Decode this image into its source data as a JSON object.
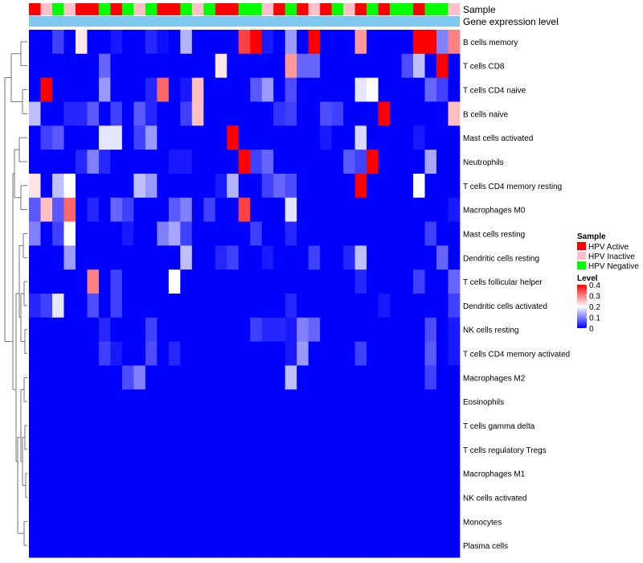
{
  "chart_data": {
    "type": "heatmap",
    "annotation_labels": {
      "sample": "Sample",
      "gene_expression": "Gene expression level"
    },
    "sample_groups": [
      "HPV Active",
      "HPV Inactive",
      "HPV Negative"
    ],
    "sample_annotation": [
      "HPV Active",
      "HPV Inactive",
      "HPV Negative",
      "HPV Inactive",
      "HPV Active",
      "HPV Active",
      "HPV Negative",
      "HPV Active",
      "HPV Negative",
      "HPV Inactive",
      "HPV Negative",
      "HPV Active",
      "HPV Active",
      "HPV Negative",
      "HPV Inactive",
      "HPV Negative",
      "HPV Active",
      "HPV Active",
      "HPV Negative",
      "HPV Negative",
      "HPV Inactive",
      "HPV Active",
      "HPV Negative",
      "HPV Active",
      "HPV Inactive",
      "HPV Active",
      "HPV Negative",
      "HPV Inactive",
      "HPV Active",
      "HPV Negative",
      "HPV Active",
      "HPV Negative",
      "HPV Negative",
      "HPV Active",
      "HPV Negative",
      "HPV Negative",
      "HPV Inactive"
    ],
    "gene_expression_color": "#7fc8f0",
    "rows": [
      "B cells memory",
      "T cells CD8",
      "T cells CD4 naive",
      "B cells naive",
      "Mast cells activated",
      "Neutrophils",
      "T cells CD4 memory resting",
      "Macrophages M0",
      "Mast cells resting",
      "Dendritic cells resting",
      "T cells follicular helper",
      "Dendritic cells activated",
      "NK cells resting",
      "T cells CD4 memory activated",
      "Macrophages M2",
      "Eosinophils",
      "T cells gamma delta",
      "T cells regulatory  Tregs",
      "Macrophages M1",
      "NK cells activated",
      "Monocytes",
      "Plasma cells"
    ],
    "values": [
      [
        0.0,
        0.0,
        0.05,
        0.0,
        0.22,
        0.0,
        0.0,
        0.02,
        0.0,
        0.0,
        0.03,
        0.01,
        0.0,
        0.14,
        0.0,
        0.0,
        0.0,
        0.0,
        0.35,
        0.4,
        0.02,
        0.0,
        0.12,
        0.0,
        0.4,
        0.0,
        0.0,
        0.0,
        0.28,
        0.0,
        0.0,
        0.0,
        0.0,
        0.4,
        0.4,
        0.1,
        0.3
      ],
      [
        0.0,
        0.0,
        0.0,
        0.0,
        0.0,
        0.0,
        0.08,
        0.0,
        0.0,
        0.0,
        0.0,
        0.0,
        0.0,
        0.0,
        0.0,
        0.0,
        0.22,
        0.0,
        0.0,
        0.0,
        0.0,
        0.0,
        0.28,
        0.08,
        0.08,
        0.0,
        0.0,
        0.0,
        0.0,
        0.0,
        0.0,
        0.0,
        0.06,
        0.15,
        0.0,
        0.4,
        0.0
      ],
      [
        0.0,
        0.4,
        0.0,
        0.0,
        0.0,
        0.0,
        0.12,
        0.0,
        0.0,
        0.0,
        0.03,
        0.32,
        0.0,
        0.02,
        0.25,
        0.0,
        0.0,
        0.0,
        0.0,
        0.07,
        0.12,
        0.0,
        0.06,
        0.0,
        0.0,
        0.0,
        0.0,
        0.0,
        0.18,
        0.2,
        0.0,
        0.0,
        0.0,
        0.0,
        0.08,
        0.05,
        0.0
      ],
      [
        0.15,
        0.0,
        0.0,
        0.03,
        0.03,
        0.07,
        0.0,
        0.05,
        0.0,
        0.07,
        0.03,
        0.0,
        0.0,
        0.05,
        0.25,
        0.0,
        0.0,
        0.0,
        0.0,
        0.0,
        0.0,
        0.04,
        0.05,
        0.0,
        0.0,
        0.06,
        0.05,
        0.0,
        0.0,
        0.0,
        0.4,
        0.0,
        0.0,
        0.0,
        0.0,
        0.0,
        0.25
      ],
      [
        0.0,
        0.05,
        0.07,
        0.0,
        0.0,
        0.0,
        0.18,
        0.18,
        0.0,
        0.05,
        0.12,
        0.0,
        0.0,
        0.0,
        0.0,
        0.0,
        0.0,
        0.4,
        0.0,
        0.0,
        0.0,
        0.0,
        0.0,
        0.0,
        0.0,
        0.02,
        0.0,
        0.0,
        0.17,
        0.0,
        0.0,
        0.0,
        0.0,
        0.02,
        0.0,
        0.0,
        0.0
      ],
      [
        0.0,
        0.0,
        0.0,
        0.0,
        0.03,
        0.1,
        0.03,
        0.0,
        0.0,
        0.0,
        0.0,
        0.0,
        0.02,
        0.02,
        0.0,
        0.0,
        0.0,
        0.0,
        0.4,
        0.05,
        0.08,
        0.0,
        0.0,
        0.0,
        0.0,
        0.0,
        0.0,
        0.07,
        0.05,
        0.4,
        0.0,
        0.0,
        0.0,
        0.0,
        0.13,
        0.0,
        0.0
      ],
      [
        0.22,
        0.0,
        0.15,
        0.2,
        0.0,
        0.0,
        0.0,
        0.0,
        0.0,
        0.15,
        0.12,
        0.0,
        0.0,
        0.0,
        0.0,
        0.0,
        0.02,
        0.14,
        0.0,
        0.0,
        0.05,
        0.08,
        0.06,
        0.0,
        0.0,
        0.0,
        0.0,
        0.0,
        0.4,
        0.0,
        0.0,
        0.0,
        0.0,
        0.2,
        0.0,
        0.0,
        0.0
      ],
      [
        0.07,
        0.25,
        0.07,
        0.32,
        0.0,
        0.03,
        0.0,
        0.08,
        0.05,
        0.0,
        0.0,
        0.0,
        0.07,
        0.1,
        0.0,
        0.05,
        0.0,
        0.0,
        0.35,
        0.0,
        0.0,
        0.0,
        0.18,
        0.0,
        0.0,
        0.0,
        0.0,
        0.0,
        0.0,
        0.0,
        0.0,
        0.0,
        0.0,
        0.0,
        0.0,
        0.0,
        0.02
      ],
      [
        0.1,
        0.0,
        0.05,
        0.2,
        0.0,
        0.0,
        0.0,
        0.0,
        0.02,
        0.0,
        0.0,
        0.1,
        0.13,
        0.05,
        0.0,
        0.0,
        0.0,
        0.0,
        0.0,
        0.05,
        0.0,
        0.0,
        0.03,
        0.0,
        0.0,
        0.0,
        0.0,
        0.0,
        0.0,
        0.0,
        0.0,
        0.0,
        0.0,
        0.0,
        0.05,
        0.0,
        0.0
      ],
      [
        0.0,
        0.0,
        0.0,
        0.12,
        0.0,
        0.0,
        0.0,
        0.0,
        0.0,
        0.0,
        0.0,
        0.0,
        0.0,
        0.15,
        0.0,
        0.0,
        0.03,
        0.05,
        0.0,
        0.0,
        0.02,
        0.0,
        0.0,
        0.0,
        0.05,
        0.0,
        0.0,
        0.03,
        0.15,
        0.0,
        0.0,
        0.0,
        0.0,
        0.0,
        0.0,
        0.08,
        0.0
      ],
      [
        0.0,
        0.0,
        0.0,
        0.0,
        0.0,
        0.3,
        0.0,
        0.05,
        0.0,
        0.0,
        0.0,
        0.0,
        0.2,
        0.0,
        0.0,
        0.0,
        0.0,
        0.0,
        0.0,
        0.0,
        0.0,
        0.0,
        0.0,
        0.0,
        0.0,
        0.0,
        0.0,
        0.0,
        0.03,
        0.0,
        0.0,
        0.0,
        0.0,
        0.05,
        0.0,
        0.0,
        0.08
      ],
      [
        0.03,
        0.05,
        0.18,
        0.0,
        0.0,
        0.06,
        0.0,
        0.05,
        0.0,
        0.0,
        0.0,
        0.0,
        0.0,
        0.0,
        0.0,
        0.0,
        0.0,
        0.0,
        0.0,
        0.0,
        0.0,
        0.0,
        0.03,
        0.0,
        0.0,
        0.0,
        0.0,
        0.0,
        0.0,
        0.0,
        0.02,
        0.0,
        0.0,
        0.0,
        0.0,
        0.0,
        0.05
      ],
      [
        0.0,
        0.0,
        0.0,
        0.0,
        0.0,
        0.0,
        0.03,
        0.0,
        0.0,
        0.0,
        0.05,
        0.0,
        0.0,
        0.0,
        0.0,
        0.0,
        0.0,
        0.0,
        0.0,
        0.05,
        0.03,
        0.03,
        0.02,
        0.1,
        0.08,
        0.0,
        0.0,
        0.0,
        0.0,
        0.0,
        0.0,
        0.0,
        0.0,
        0.0,
        0.06,
        0.0,
        0.02
      ],
      [
        0.0,
        0.0,
        0.0,
        0.0,
        0.0,
        0.0,
        0.05,
        0.02,
        0.0,
        0.0,
        0.06,
        0.0,
        0.03,
        0.0,
        0.0,
        0.0,
        0.0,
        0.0,
        0.0,
        0.0,
        0.0,
        0.0,
        0.02,
        0.12,
        0.0,
        0.0,
        0.0,
        0.0,
        0.05,
        0.0,
        0.0,
        0.0,
        0.0,
        0.0,
        0.07,
        0.0,
        0.02
      ],
      [
        0.0,
        0.0,
        0.0,
        0.0,
        0.0,
        0.0,
        0.0,
        0.0,
        0.06,
        0.1,
        0.0,
        0.0,
        0.0,
        0.0,
        0.0,
        0.0,
        0.0,
        0.0,
        0.0,
        0.0,
        0.0,
        0.0,
        0.15,
        0.0,
        0.0,
        0.0,
        0.0,
        0.0,
        0.0,
        0.0,
        0.0,
        0.0,
        0.0,
        0.0,
        0.05,
        0.0,
        0.0
      ],
      [
        0.0,
        0.0,
        0.0,
        0.0,
        0.0,
        0.0,
        0.0,
        0.0,
        0.0,
        0.0,
        0.0,
        0.0,
        0.0,
        0.0,
        0.0,
        0.0,
        0.0,
        0.0,
        0.0,
        0.0,
        0.0,
        0.0,
        0.0,
        0.0,
        0.0,
        0.0,
        0.0,
        0.0,
        0.0,
        0.0,
        0.0,
        0.0,
        0.0,
        0.0,
        0.0,
        0.0,
        0.0
      ],
      [
        0.0,
        0.0,
        0.0,
        0.0,
        0.0,
        0.0,
        0.0,
        0.0,
        0.0,
        0.0,
        0.0,
        0.0,
        0.0,
        0.0,
        0.0,
        0.0,
        0.0,
        0.0,
        0.0,
        0.0,
        0.0,
        0.0,
        0.0,
        0.0,
        0.0,
        0.0,
        0.0,
        0.0,
        0.0,
        0.0,
        0.0,
        0.0,
        0.0,
        0.0,
        0.0,
        0.0,
        0.0
      ],
      [
        0.0,
        0.0,
        0.0,
        0.0,
        0.0,
        0.0,
        0.0,
        0.0,
        0.0,
        0.0,
        0.0,
        0.0,
        0.0,
        0.0,
        0.0,
        0.0,
        0.0,
        0.0,
        0.0,
        0.0,
        0.0,
        0.0,
        0.0,
        0.0,
        0.0,
        0.0,
        0.0,
        0.0,
        0.0,
        0.0,
        0.0,
        0.0,
        0.0,
        0.0,
        0.0,
        0.0,
        0.0
      ],
      [
        0.0,
        0.0,
        0.0,
        0.0,
        0.0,
        0.0,
        0.0,
        0.0,
        0.0,
        0.0,
        0.0,
        0.0,
        0.0,
        0.0,
        0.0,
        0.0,
        0.0,
        0.0,
        0.0,
        0.0,
        0.0,
        0.0,
        0.0,
        0.0,
        0.0,
        0.0,
        0.0,
        0.0,
        0.0,
        0.0,
        0.0,
        0.0,
        0.0,
        0.0,
        0.0,
        0.0,
        0.0
      ],
      [
        0.0,
        0.0,
        0.0,
        0.0,
        0.0,
        0.0,
        0.0,
        0.0,
        0.0,
        0.0,
        0.0,
        0.0,
        0.0,
        0.0,
        0.0,
        0.0,
        0.0,
        0.0,
        0.0,
        0.0,
        0.0,
        0.0,
        0.0,
        0.0,
        0.0,
        0.0,
        0.0,
        0.0,
        0.0,
        0.0,
        0.0,
        0.0,
        0.0,
        0.0,
        0.0,
        0.0,
        0.0
      ],
      [
        0.0,
        0.0,
        0.0,
        0.0,
        0.0,
        0.0,
        0.0,
        0.0,
        0.0,
        0.0,
        0.0,
        0.0,
        0.0,
        0.0,
        0.0,
        0.0,
        0.0,
        0.0,
        0.0,
        0.0,
        0.0,
        0.0,
        0.0,
        0.0,
        0.0,
        0.0,
        0.0,
        0.0,
        0.0,
        0.0,
        0.0,
        0.0,
        0.0,
        0.0,
        0.0,
        0.0,
        0.0
      ],
      [
        0.0,
        0.0,
        0.0,
        0.0,
        0.0,
        0.0,
        0.0,
        0.0,
        0.0,
        0.0,
        0.0,
        0.0,
        0.0,
        0.0,
        0.0,
        0.0,
        0.0,
        0.0,
        0.0,
        0.0,
        0.0,
        0.0,
        0.0,
        0.0,
        0.0,
        0.0,
        0.0,
        0.0,
        0.0,
        0.0,
        0.0,
        0.0,
        0.0,
        0.0,
        0.0,
        0.0,
        0.0
      ]
    ],
    "color_scale": {
      "min": 0,
      "max": 0.4,
      "low": "#0000ff",
      "mid": "#ffffff",
      "high": "#ff0000",
      "mid_value": 0.2
    },
    "legend": {
      "sample_title": "Sample",
      "sample_entries": [
        {
          "label": "HPV Active",
          "color": "#ff0000"
        },
        {
          "label": "HPV Inactive",
          "color": "#ffc0cb"
        },
        {
          "label": "HPV Negative",
          "color": "#00ff00"
        }
      ],
      "level_title": "Level",
      "level_ticks": [
        "0.4",
        "0.3",
        "0.2",
        "0.1",
        "0"
      ],
      "placement": "right"
    }
  }
}
